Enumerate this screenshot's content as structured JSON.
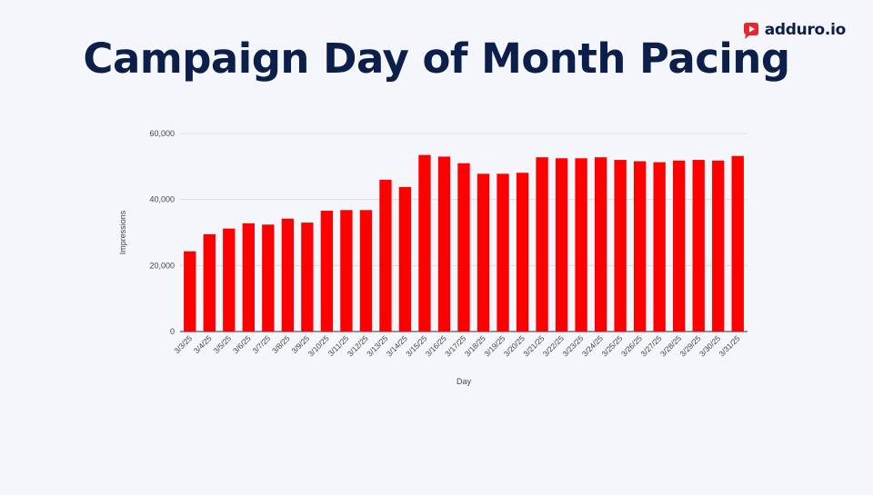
{
  "header": {
    "title": "Campaign Day of Month Pacing",
    "brand": "adduro.io"
  },
  "colors": {
    "bar": "#ff0000",
    "title": "#0b1f4a",
    "brand_mark": "#e8262b",
    "grid": "#d9d9d9",
    "axis_text": "#444444"
  },
  "icons": {
    "brand_mark": "play-logo-icon"
  },
  "chart_data": {
    "type": "bar",
    "title": "",
    "xlabel": "Day",
    "ylabel": "Impressions",
    "ylim": [
      0,
      60000
    ],
    "yticks": [
      0,
      20000,
      40000,
      60000
    ],
    "ytick_labels": [
      "0",
      "20,000",
      "40,000",
      "60,000"
    ],
    "grid": true,
    "legend": "none",
    "categories": [
      "3/3/25",
      "3/4/25",
      "3/5/25",
      "3/6/25",
      "3/7/25",
      "3/8/25",
      "3/9/25",
      "3/10/25",
      "3/11/25",
      "3/12/25",
      "3/13/25",
      "3/14/25",
      "3/15/25",
      "3/16/25",
      "3/17/25",
      "3/18/25",
      "3/19/25",
      "3/20/25",
      "3/21/25",
      "3/22/25",
      "3/23/25",
      "3/24/25",
      "3/25/25",
      "3/26/25",
      "3/27/25",
      "3/28/25",
      "3/29/25",
      "3/30/25",
      "3/31/25"
    ],
    "values": [
      24300,
      29500,
      31200,
      32800,
      32400,
      34200,
      33000,
      36600,
      36800,
      36800,
      46000,
      43800,
      53500,
      53000,
      51000,
      47800,
      47800,
      48100,
      52800,
      52500,
      52500,
      52800,
      52000,
      51600,
      51300,
      51800,
      52000,
      51800,
      53200
    ]
  }
}
